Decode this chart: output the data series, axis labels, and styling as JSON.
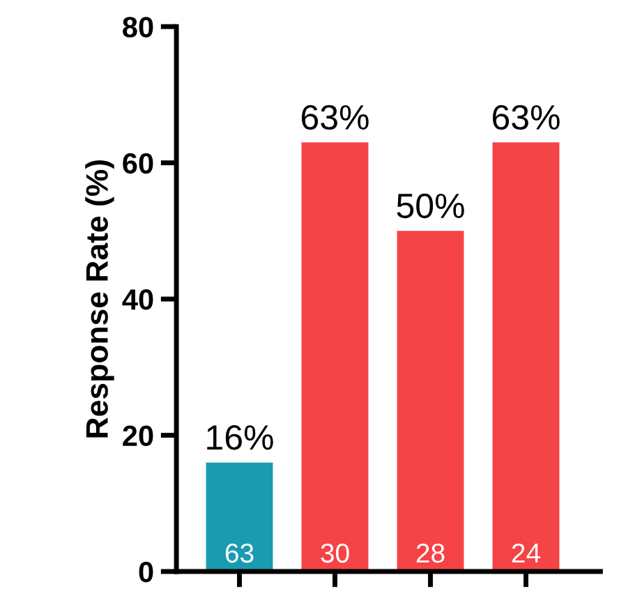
{
  "chart_data": {
    "type": "bar",
    "ylabel": "Response Rate (%)",
    "categories": [
      null,
      null,
      null,
      null
    ],
    "values": [
      16,
      63,
      50,
      63
    ],
    "colors": [
      "#1a9bb0",
      "#f54447",
      "#f54447",
      "#f54447"
    ],
    "value_labels": [
      "16%",
      "63%",
      "50%",
      "63%"
    ],
    "annotations": [
      "63",
      "30",
      "28",
      "24"
    ],
    "ylim": [
      0,
      80
    ],
    "yticks": [
      0,
      20,
      40,
      60,
      80
    ],
    "tick_labels": "y",
    "grid": false,
    "legend": false
  }
}
